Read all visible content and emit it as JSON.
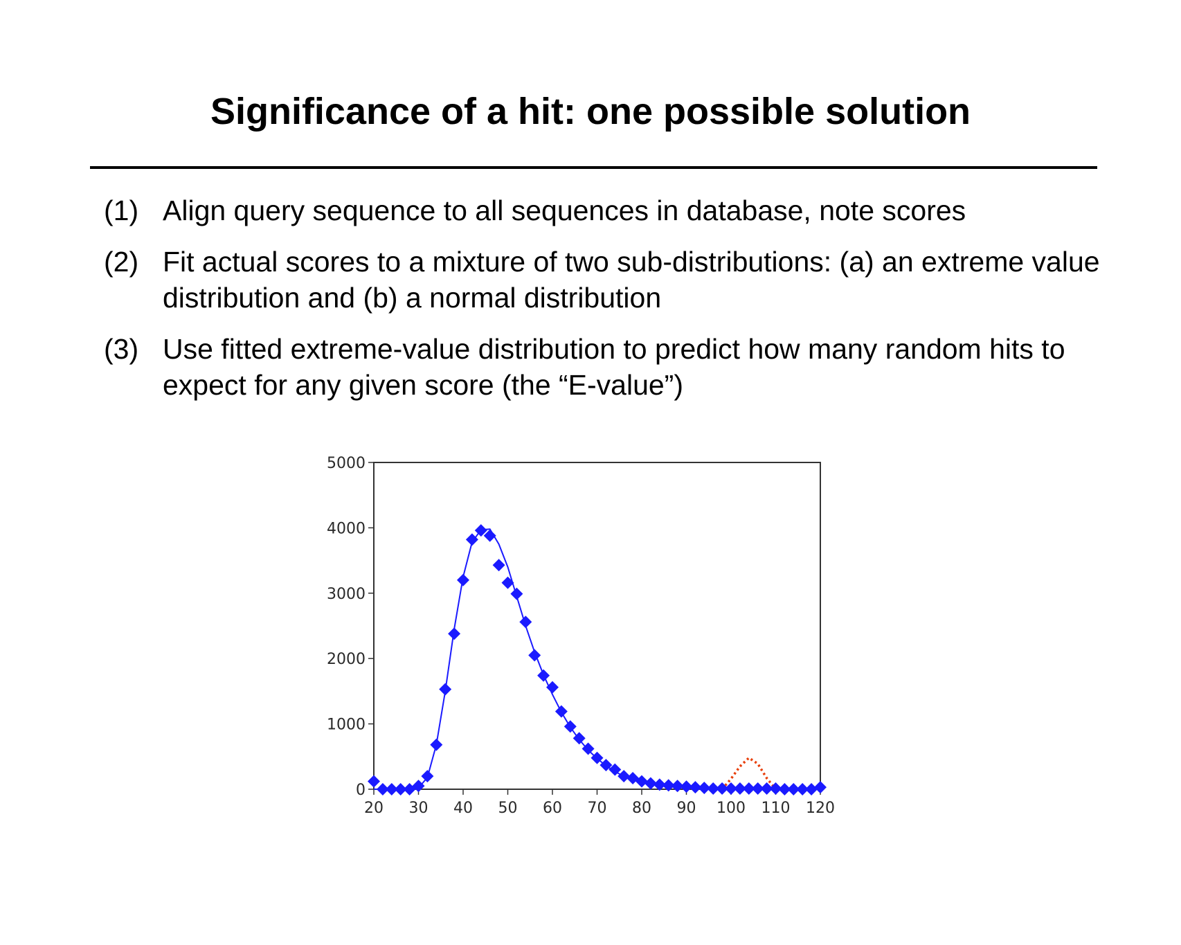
{
  "slide": {
    "title": "Significance of a hit: one possible solution",
    "items": [
      {
        "number": "(1)",
        "text": "Align query sequence to all sequences in database, note scores"
      },
      {
        "number": "(2)",
        "text": "Fit actual scores to a mixture of two sub-distributions: (a) an extreme value distribution and (b) a normal distribution"
      },
      {
        "number": "(3)",
        "text": "Use fitted extreme-value distribution to predict how many random hits to expect for any given score (the “E-value”)"
      }
    ]
  },
  "chart_data": {
    "type": "scatter",
    "title": "",
    "xlabel": "",
    "ylabel": "",
    "xlim": [
      20,
      120
    ],
    "ylim": [
      0,
      5000
    ],
    "xticks": [
      20,
      30,
      40,
      50,
      60,
      70,
      80,
      90,
      100,
      110,
      120
    ],
    "yticks": [
      0,
      1000,
      2000,
      3000,
      4000,
      5000
    ],
    "grid": false,
    "legend": "none",
    "series": [
      {
        "kind": "points",
        "marker": "diamond",
        "color": "#1a1aff",
        "x": [
          20,
          22,
          24,
          26,
          28,
          30,
          32,
          34,
          36,
          38,
          40,
          42,
          44,
          46,
          48,
          50,
          52,
          54,
          56,
          58,
          60,
          62,
          64,
          66,
          68,
          70,
          72,
          74,
          76,
          78,
          80,
          82,
          84,
          86,
          88,
          90,
          92,
          94,
          96,
          98,
          100,
          102,
          104,
          106,
          108,
          110,
          112,
          114,
          116,
          118,
          120
        ],
        "y": [
          120,
          0,
          0,
          0,
          0,
          50,
          200,
          680,
          1530,
          2380,
          3200,
          3820,
          3960,
          3880,
          3430,
          3160,
          2990,
          2560,
          2050,
          1740,
          1560,
          1190,
          960,
          780,
          620,
          480,
          370,
          300,
          200,
          170,
          120,
          90,
          70,
          60,
          50,
          40,
          30,
          20,
          10,
          10,
          10,
          10,
          10,
          10,
          10,
          10,
          0,
          0,
          0,
          0,
          30
        ]
      },
      {
        "kind": "line",
        "style": "solid",
        "color": "#1a1aff",
        "x": [
          20,
          22,
          24,
          26,
          28,
          30,
          32,
          34,
          36,
          38,
          40,
          42,
          44,
          46,
          48,
          50,
          52,
          54,
          56,
          58,
          60,
          62,
          64,
          66,
          68,
          70,
          72,
          74,
          76,
          78,
          80,
          82,
          84,
          86,
          88,
          90,
          92,
          94,
          96,
          98,
          100,
          102,
          104,
          106,
          108,
          110,
          112,
          114,
          116,
          118,
          120
        ],
        "y": [
          0,
          0,
          0,
          0,
          0,
          20,
          180,
          680,
          1500,
          2450,
          3250,
          3780,
          3970,
          3980,
          3750,
          3400,
          2950,
          2500,
          2100,
          1750,
          1450,
          1180,
          950,
          760,
          600,
          470,
          360,
          270,
          200,
          150,
          110,
          80,
          55,
          40,
          30,
          20,
          15,
          10,
          5,
          0,
          0,
          0,
          0,
          0,
          0,
          0,
          0,
          0,
          0,
          0,
          0
        ]
      },
      {
        "kind": "line",
        "style": "dotted",
        "color": "#e8400c",
        "x": [
          98,
          100,
          102,
          104,
          106,
          108,
          110
        ],
        "y": [
          0,
          160,
          350,
          480,
          390,
          170,
          0
        ]
      }
    ]
  }
}
